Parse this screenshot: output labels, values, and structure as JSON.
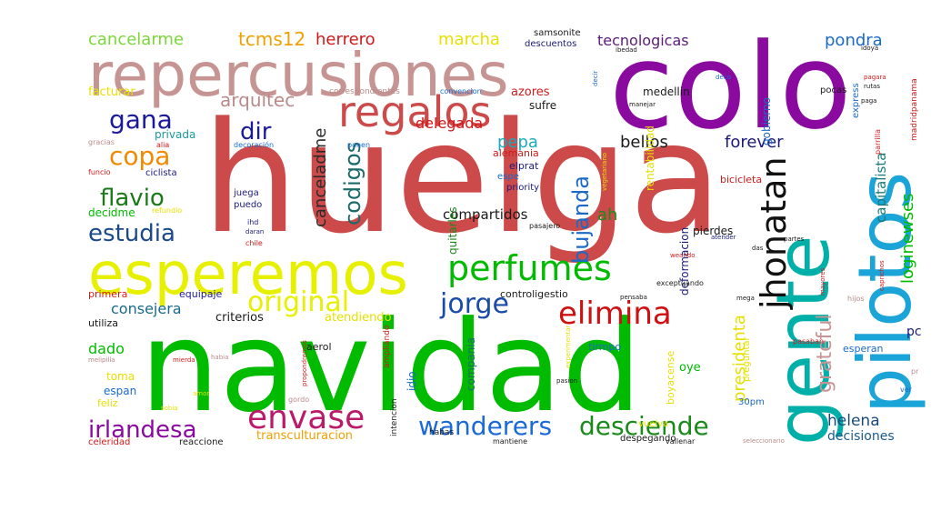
{
  "words": {
    "huelga": {
      "text": "huelga",
      "color": "#CC4A4A"
    },
    "navidad": {
      "text": "navidad",
      "color": "#00BB00"
    },
    "colo": {
      "text": "colo",
      "color": "#8A0AA0"
    },
    "repercusiones": {
      "text": "repercusiones",
      "color": "#C79494"
    },
    "esperemos": {
      "text": "esperemos",
      "color": "#E6F000"
    },
    "gente": {
      "text": "gente",
      "color": "#00B0A8"
    },
    "pilotos": {
      "text": "pilotos",
      "color": "#1AA4D8"
    },
    "regalos": {
      "text": "regalos",
      "color": "#CC4A4A"
    },
    "perfumes": {
      "text": "perfumes",
      "color": "#00BB00"
    },
    "envase": {
      "text": "envase",
      "color": "#BB1A6A"
    },
    "elimina": {
      "text": "elimina",
      "color": "#D01010"
    },
    "jhonatan": {
      "text": "jhonatan",
      "color": "#111111"
    },
    "original": {
      "text": "original",
      "color": "#E6F000"
    },
    "jorge": {
      "text": "jorge",
      "color": "#1A4AAA"
    },
    "wanderers": {
      "text": "wanderers",
      "color": "#1A6AD8"
    },
    "desciende": {
      "text": "desciende",
      "color": "#1A8A1A"
    },
    "irlandesa": {
      "text": "irlandesa",
      "color": "#8A0AA0"
    },
    "gana": {
      "text": "gana",
      "color": "#1A1AAA"
    },
    "copa": {
      "text": "copa",
      "color": "#F08A00"
    },
    "flavio": {
      "text": "flavio",
      "color": "#1A7A1A"
    },
    "estudia": {
      "text": "estudia",
      "color": "#1A4A8A"
    },
    "dir": {
      "text": "dir",
      "color": "#1A1A9A"
    },
    "codigos": {
      "text": "codigos",
      "color": "#1A6A6A"
    },
    "bujanda": {
      "text": "bujanda",
      "color": "#1A6AC8"
    },
    "tecnologicas": {
      "text": "tecnologicas",
      "color": "#5A1A7A"
    },
    "cancelarme": {
      "text": "cancelarme",
      "color": "#7AD83A"
    },
    "tcms12": {
      "text": "tcms12",
      "color": "#F0A000"
    },
    "herrero": {
      "text": "herrero",
      "color": "#D01A1A"
    },
    "marcha": {
      "text": "marcha",
      "color": "#E6E000"
    },
    "arquitec": {
      "text": "arquitec",
      "color": "#BA8A8A"
    },
    "pondra": {
      "text": "pondra",
      "color": "#1A6AC8"
    },
    "bellos": {
      "text": "bellos",
      "color": "#1A1A1A"
    },
    "forever": {
      "text": "forever",
      "color": "#1A1A7A"
    },
    "pepa": {
      "text": "pepa",
      "color": "#1AAABA"
    },
    "delegada": {
      "text": "delegada",
      "color": "#D01A1A"
    },
    "cancelados": {
      "text": "canceladme",
      "color": "#2A2A2A"
    },
    "compartidos": {
      "text": "compartidos",
      "color": "#1A1A1A"
    },
    "ah": {
      "text": "ah",
      "color": "#1A8A1A"
    },
    "grateful": {
      "text": "grateful",
      "color": "#C79494"
    },
    "presidenta": {
      "text": "presidenta",
      "color": "#E6E000"
    },
    "loginewses": {
      "text": "loginewses",
      "color": "#00BB00"
    },
    "capitalista": {
      "text": "capitalista",
      "color": "#1A7A7A"
    },
    "consejera": {
      "text": "consejera",
      "color": "#1A6A8A"
    },
    "criterios": {
      "text": "criterios",
      "color": "#1A1A1A"
    },
    "atendiendo": {
      "text": "atendiendo",
      "color": "#E6E000"
    },
    "dado": {
      "text": "dado",
      "color": "#00BB00"
    },
    "helena": {
      "text": "helena",
      "color": "#1A4A7A"
    },
    "decisiones": {
      "text": "decisiones",
      "color": "#1A5A8A"
    },
    "transculturacion": {
      "text": "transculturacion",
      "color": "#F0A000"
    },
    "facturar": {
      "text": "facturar",
      "color": "#E6E000"
    },
    "privada": {
      "text": "privada",
      "color": "#1A9A9A"
    },
    "decidme": {
      "text": "decidme",
      "color": "#00BB00"
    },
    "azores": {
      "text": "azores",
      "color": "#D01A1A"
    },
    "sufre": {
      "text": "sufre",
      "color": "#1A1A1A"
    },
    "rentabilidad": {
      "text": "rentabilidad",
      "color": "#E6E000"
    },
    "gobierno": {
      "text": "gobierno",
      "color": "#1A6AC8"
    },
    "deformacion": {
      "text": "deformacion",
      "color": "#1A1A7A"
    },
    "pc": {
      "text": "pc",
      "color": "#1A1A7A"
    },
    "primera": {
      "text": "primera",
      "color": "#D01A1A"
    },
    "equipaje": {
      "text": "equipaje",
      "color": "#1A1A9A"
    },
    "quitarles": {
      "text": "quitarles",
      "color": "#1A8A1A"
    },
    "companía": {
      "text": "compania",
      "color": "#1A6A6A"
    },
    "idio": {
      "text": "idio",
      "color": "#1A6AC8"
    },
    "oye": {
      "text": "oye",
      "color": "#00BB00"
    },
    "toma": {
      "text": "toma",
      "color": "#E6E000"
    },
    "espan": {
      "text": "espan",
      "color": "#1A6AC8"
    },
    "feliz": {
      "text": "feliz",
      "color": "#E6E000"
    },
    "aerol": {
      "text": "aerol",
      "color": "#1A1A1A"
    },
    "tirmpo": {
      "text": "tirmpo",
      "color": "#1A6AC8"
    },
    "esperan": {
      "text": "esperan",
      "color": "#1A6AC8"
    },
    "alemania": {
      "text": "alemania",
      "color": "#D01A1A"
    },
    "elprat": {
      "text": "elprat",
      "color": "#1A1A7A"
    },
    "espe": {
      "text": "espe",
      "color": "#1A6AC8"
    },
    "priority": {
      "text": "priority",
      "color": "#1A1A7A"
    },
    "bicicleta": {
      "text": "bicicleta",
      "color": "#D01A1A"
    },
    "pierdes": {
      "text": "pierdes",
      "color": "#1A1A1A"
    },
    "pocas": {
      "text": "pocas",
      "color": "#1A1A1A"
    },
    "medellin": {
      "text": "medellin",
      "color": "#1A1A1A"
    },
    "samsonite": {
      "text": "samsonite",
      "color": "#1A1A1A"
    },
    "descuentos": {
      "text": "descuentos",
      "color": "#1A1A7A"
    },
    "ciclista": {
      "text": "ciclista",
      "color": "#1A1A7A"
    },
    "juega": {
      "text": "juega",
      "color": "#1A1A7A"
    },
    "puedo": {
      "text": "puedo",
      "color": "#1A1A7A"
    },
    "celeridad": {
      "text": "celeridad",
      "color": "#D01A1A"
    },
    "reaccione": {
      "text": "reaccione",
      "color": "#1A1A1A"
    },
    "controligestio": {
      "text": "controligestio",
      "color": "#1A1A1A"
    },
    "utiliza": {
      "text": "utiliza",
      "color": "#1A1A1A"
    },
    "ampliando": {
      "text": "ampliando",
      "color": "#D01A1A"
    },
    "30pm": {
      "text": "30pm",
      "color": "#1A6AC8"
    },
    "correspondientes": {
      "text": "correspondientes",
      "color": "#BA8A8A"
    },
    "convencion": {
      "text": "convencion",
      "color": "#1A6AC8"
    },
    "mejor": {
      "text": "mejor",
      "color": "#1A1A7A"
    },
    "decoración": {
      "text": "decoración",
      "color": "#1A6AC8"
    },
    "ponen": {
      "text": "ponen",
      "color": "#1A6AC8"
    },
    "vuelva": {
      "text": "vuelva",
      "color": "#E6E000"
    },
    "despegando": {
      "text": "despegando",
      "color": "#1A1A1A"
    },
    "habas": {
      "text": "habas",
      "color": "#1A1A1A"
    },
    "intencion": {
      "text": "intencion",
      "color": "#1A1A1A"
    },
    "mantiene": {
      "text": "mantiene",
      "color": "#1A1A1A"
    },
    "vallenar": {
      "text": "vallenar",
      "color": "#1A1A1A"
    },
    "boyacense": {
      "text": "boyacense",
      "color": "#E6E000"
    },
    "preguntar": {
      "text": "preguntar",
      "color": "#E6E000"
    },
    "pasaban": {
      "text": "pasaban",
      "color": "#D01A1A"
    },
    "gracias": {
      "text": "gracias",
      "color": "#BA8A8A"
    },
    "hijos": {
      "text": "hijos",
      "color": "#BA8A8A"
    },
    "gordo": {
      "text": "gordo",
      "color": "#BA8A8A"
    },
    "melipilla": {
      "text": "melipilla",
      "color": "#BA8A8A"
    },
    "amor": {
      "text": "amor",
      "color": "#E6E000"
    },
    "pasion": {
      "text": "pasion",
      "color": "#1A1A1A"
    },
    "ver": {
      "text": "ver",
      "color": "#1A6AC8"
    },
    "pr": {
      "text": "pr",
      "color": "#BA8A8A"
    },
    "ibedad": {
      "text": "ibedad",
      "color": "#1A1A1A"
    },
    "idoya": {
      "text": "idoya",
      "color": "#1A1A1A"
    },
    "madridpanama": {
      "text": "madridpanama",
      "color": "#D01A1A"
    },
    "pagara": {
      "text": "pagara",
      "color": "#D01A1A"
    },
    "rutas": {
      "text": "rutas",
      "color": "#1A1A1A"
    },
    "paga": {
      "text": "paga",
      "color": "#1A1A1A"
    },
    "express": {
      "text": "express",
      "color": "#1A6AC8"
    },
    "parrilla": {
      "text": "parrilla",
      "color": "#D01A1A"
    },
    "refundio": {
      "text": "refundio",
      "color": "#E6E000"
    },
    "funcio": {
      "text": "funcio",
      "color": "#D01A1A"
    },
    "alia": {
      "text": "alia",
      "color": "#D01A1A"
    },
    "ihd": {
      "text": "ihd",
      "color": "#1A1A7A"
    },
    "daran": {
      "text": "daran",
      "color": "#1A1A7A"
    },
    "chile": {
      "text": "chile",
      "color": "#D01A1A"
    },
    "pasajero": {
      "text": "pasajero",
      "color": "#1A1A1A"
    },
    "atender": {
      "text": "atender",
      "color": "#1A1A7A"
    },
    "partes": {
      "text": "partes",
      "color": "#1A1A1A"
    },
    "caprichos": {
      "text": "caprichos",
      "color": "#D01A1A"
    },
    "vegetariano": {
      "text": "vegetariano",
      "color": "#E6E000"
    },
    "exceptuando": {
      "text": "exceptuando",
      "color": "#1A1A1A"
    },
    "pensaba": {
      "text": "pensaba",
      "color": "#1A1A1A"
    },
    "mega": {
      "text": "mega",
      "color": "#1A1A1A"
    },
    "mayores": {
      "text": "mayores",
      "color": "#D01A1A"
    },
    "mierda": {
      "text": "mierda",
      "color": "#D01A1A"
    },
    "propondremos": {
      "text": "propondremos",
      "color": "#D01A1A"
    },
    "habia": {
      "text": "habia",
      "color": "#BA8A8A"
    },
    "experimentar": {
      "text": "experimentar",
      "color": "#E6E000"
    },
    "descansar": {
      "text": "descansar",
      "color": "#E6E000"
    },
    "sobia": {
      "text": "sobia",
      "color": "#E6E000"
    },
    "manejar": {
      "text": "manejar",
      "color": "#1A1A1A"
    },
    "deco": {
      "text": "deco",
      "color": "#1A6AC8"
    },
    "decir": {
      "text": "decir",
      "color": "#1A6AC8"
    },
    "das": {
      "text": "das",
      "color": "#1A1A1A"
    },
    "weando": {
      "text": "weando",
      "color": "#D01A1A"
    },
    "seleccionario": {
      "text": "seleccionario",
      "color": "#BA8A8A"
    }
  }
}
